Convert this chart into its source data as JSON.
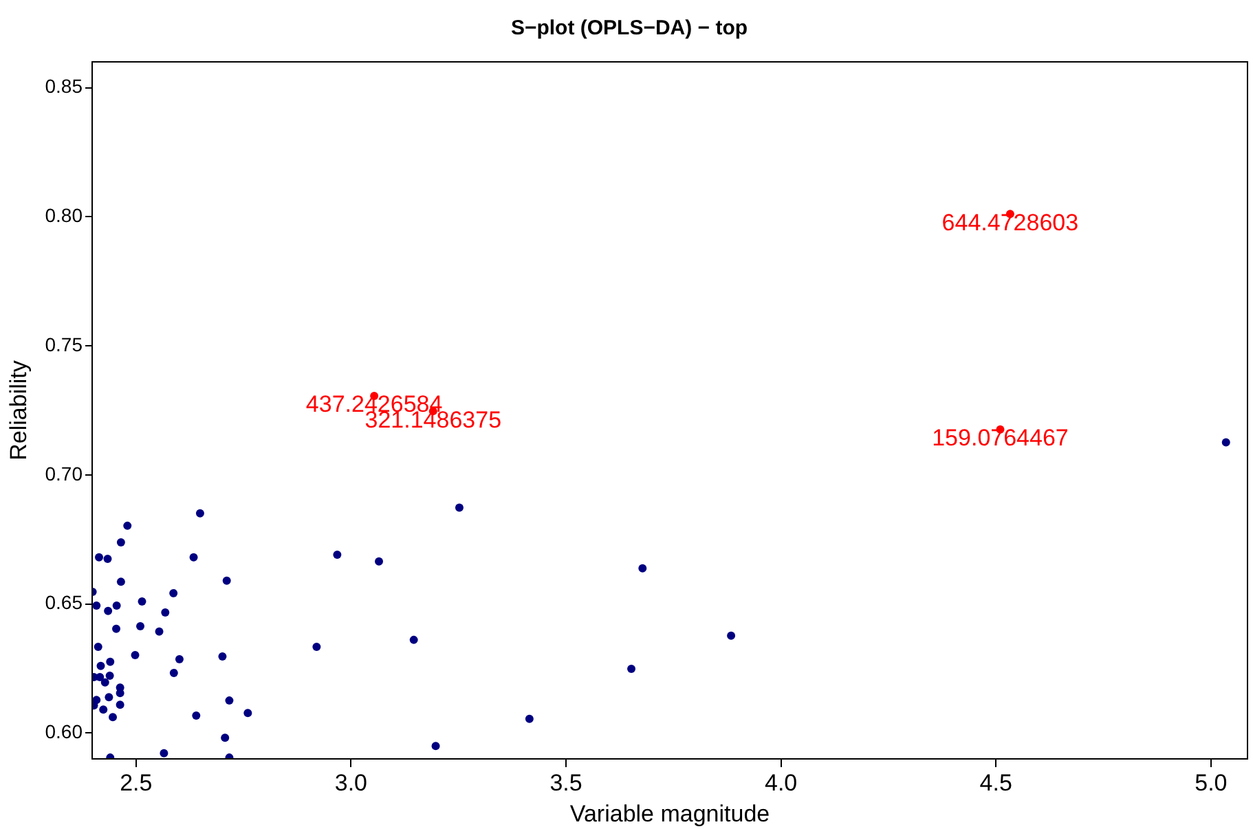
{
  "chart_data": {
    "type": "scatter",
    "title": "S−plot (OPLS−DA) − top",
    "xlabel": "Variable magnitude",
    "ylabel": "Reliability",
    "xlim": [
      2.398,
      5.085
    ],
    "ylim": [
      0.59,
      0.86
    ],
    "xticks": [
      2.5,
      {
        "value": 3,
        "label": "3.0"
      },
      3.5,
      {
        "value": 4,
        "label": "4.0"
      },
      4.5,
      {
        "value": 5,
        "label": "5.0"
      }
    ],
    "yticks": [
      {
        "value": 0.6,
        "label": "0.60"
      },
      0.65,
      {
        "value": 0.7,
        "label": "0.70"
      },
      0.75,
      {
        "value": 0.8,
        "label": "0.80"
      },
      0.85
    ],
    "grid": false,
    "legend": false,
    "marker": "circle",
    "series": [
      {
        "color": "#000080",
        "x": [
          3.252,
          2.968,
          3.065,
          3.678,
          2.92,
          3.146,
          3.884,
          3.652,
          3.415,
          3.197,
          5.035,
          2.649,
          2.48,
          2.465,
          2.414,
          2.434,
          2.634,
          2.465,
          2.711,
          2.399,
          2.587,
          2.408,
          2.455,
          2.435,
          2.514,
          2.568,
          2.454,
          2.51,
          2.554,
          2.412,
          2.498,
          2.601,
          2.701,
          2.44,
          2.418,
          2.588,
          2.402,
          2.416,
          2.439,
          2.428,
          2.463,
          2.463,
          2.437,
          2.408,
          2.717,
          2.463,
          2.402,
          2.424,
          2.446,
          2.76,
          2.64,
          2.707,
          2.565,
          2.717,
          2.44
        ],
        "values": [
          0.6873,
          0.6691,
          0.6665,
          0.6638,
          0.6334,
          0.6361,
          0.6377,
          0.6249,
          0.6055,
          0.595,
          0.7126,
          0.6851,
          0.6803,
          0.6739,
          0.6681,
          0.6675,
          0.6681,
          0.6586,
          0.659,
          0.6547,
          0.6542,
          0.6494,
          0.6494,
          0.6473,
          0.651,
          0.6467,
          0.6404,
          0.6414,
          0.6393,
          0.6334,
          0.6302,
          0.6286,
          0.6297,
          0.6276,
          0.626,
          0.6233,
          0.6217,
          0.6217,
          0.6222,
          0.6196,
          0.6176,
          0.6155,
          0.6139,
          0.6128,
          0.6126,
          0.611,
          0.6107,
          0.6091,
          0.6062,
          0.6078,
          0.6068,
          0.5982,
          0.5922,
          0.5905,
          0.5905
        ]
      },
      {
        "color": "#ff0000",
        "x": [
          3.054,
          3.191,
          4.533,
          4.51
        ],
        "values": [
          0.7306,
          0.7247,
          0.8011,
          0.7176
        ]
      }
    ],
    "annotations": [
      {
        "text": "437.2426584",
        "x": 3.054,
        "y": 0.7306
      },
      {
        "text": "321.1486375",
        "x": 3.191,
        "y": 0.7247
      },
      {
        "text": "644.4728603",
        "x": 4.533,
        "y": 0.8011
      },
      {
        "text": "159.0764467",
        "x": 4.51,
        "y": 0.7176
      }
    ]
  }
}
